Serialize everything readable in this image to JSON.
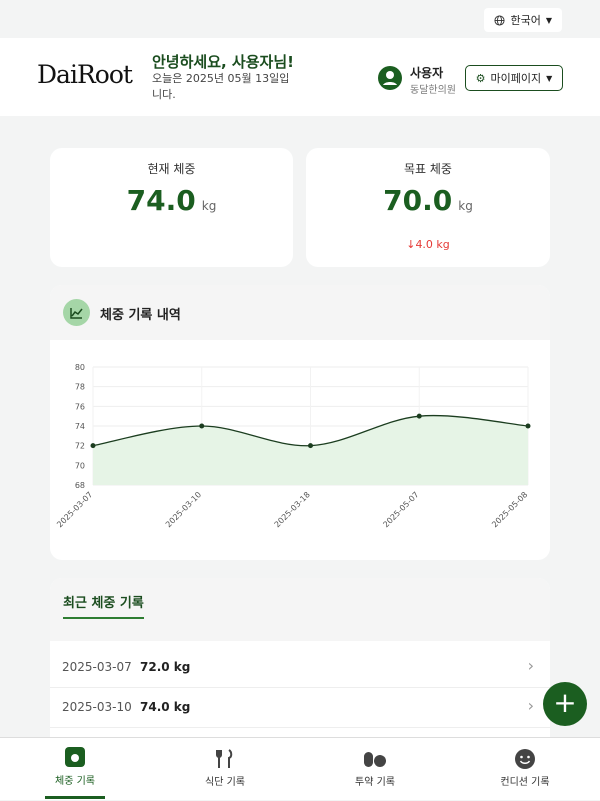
{
  "topbar": {
    "language": "한국어"
  },
  "header": {
    "logo": "DaiRoot",
    "greeting": "안녕하세요, 사용자님!",
    "date": "오늘은 2025년 05월 13일입니다.",
    "user_name": "사용자",
    "user_org": "동달한의원",
    "mypage": "마이페이지"
  },
  "cards": [
    {
      "label": "현재 체중",
      "value": "74.0",
      "unit": "kg"
    },
    {
      "label": "목표 체중",
      "value": "70.0",
      "unit": "kg",
      "diff": "4.0 kg"
    }
  ],
  "chart_section": {
    "title": "체중 기록 내역"
  },
  "chart_data": {
    "type": "line",
    "x": [
      "2025-03-07",
      "2025-03-10",
      "2025-03-18",
      "2025-05-07",
      "2025-05-08"
    ],
    "values": [
      72,
      74,
      72,
      75,
      74
    ],
    "color": "#1b3d1f",
    "fill": "#e6f4e6",
    "ylim": [
      68,
      80
    ],
    "yticks": [
      68,
      70,
      72,
      74,
      76,
      78,
      80
    ],
    "grid": true
  },
  "recent": {
    "title": "최근 체중 기록",
    "rows": [
      [
        "2025-03-07",
        "72.0 kg"
      ],
      [
        "2025-03-10",
        "74.0 kg"
      ]
    ]
  },
  "nav": [
    "체중 기록",
    "식단 기록",
    "투약 기록",
    "컨디션 기록"
  ]
}
